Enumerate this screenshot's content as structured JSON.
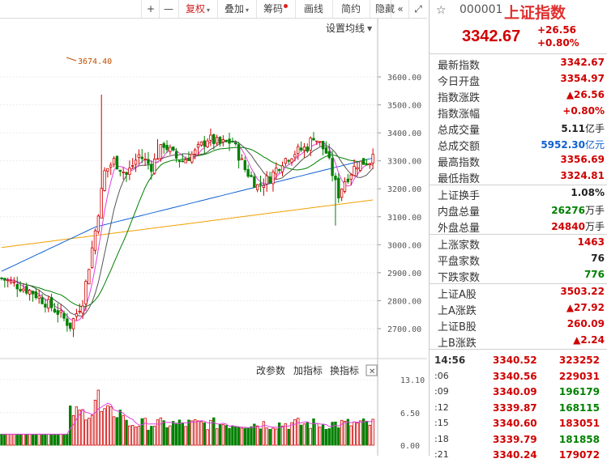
{
  "toolbar": {
    "items": [
      {
        "label": "+",
        "active": false,
        "arrow": false,
        "dot": false
      },
      {
        "label": "—",
        "active": false,
        "arrow": false,
        "dot": false
      },
      {
        "label": "复权",
        "active": true,
        "arrow": true,
        "dot": false
      },
      {
        "label": "叠加",
        "active": false,
        "arrow": true,
        "dot": false
      },
      {
        "label": "筹码",
        "active": false,
        "arrow": false,
        "dot": true
      },
      {
        "label": "画线",
        "active": false,
        "arrow": false,
        "dot": false
      },
      {
        "label": "简约",
        "active": false,
        "arrow": false,
        "dot": false
      },
      {
        "label": "隐藏",
        "active": false,
        "arrow": false,
        "dot": false
      },
      {
        "label": "«",
        "active": false,
        "arrow": false,
        "dot": false
      },
      {
        "label": "⤢",
        "active": false,
        "arrow": false,
        "dot": false
      }
    ]
  },
  "main_chart": {
    "ma_settings_label": "设置均线",
    "peak_label": "3674.40",
    "y_ticks": [
      "3600.00",
      "3500.00",
      "3400.00",
      "3300.00",
      "3200.00",
      "3100.00",
      "3000.00",
      "2900.00",
      "2800.00",
      "2700.00"
    ],
    "y_values": [
      3600,
      3500,
      3400,
      3300,
      3200,
      3100,
      3000,
      2900,
      2800,
      2700
    ]
  },
  "volume_chart": {
    "buttons": {
      "params": "改参数",
      "add": "加指标",
      "switch": "换指标",
      "close": "✕"
    },
    "y_ticks": [
      "13.10",
      "6.50",
      "0.00"
    ]
  },
  "colors": {
    "up": "#d00000",
    "down": "#008000",
    "ma5": "#e040e0",
    "ma10": "#555555",
    "ma20": "#008000",
    "ma60": "#1060d0",
    "ma120": "#f0a000"
  },
  "panel": {
    "star": "☆",
    "code": "000001",
    "name": "上证指数",
    "price": "3342.67",
    "change": "+26.56",
    "change_pct": "+0.80%",
    "stats1": [
      {
        "label": "最新指数",
        "value": "3342.67",
        "unit": "",
        "color": "red"
      },
      {
        "label": "今日开盘",
        "value": "3354.97",
        "unit": "",
        "color": "red"
      },
      {
        "label": "指数涨跌",
        "value": "▲26.56",
        "unit": "",
        "color": "red"
      },
      {
        "label": "指数涨幅",
        "value": "+0.80%",
        "unit": "",
        "color": "red"
      },
      {
        "label": "总成交量",
        "value": "5.11",
        "unit": "亿手",
        "color": "blk"
      },
      {
        "label": "总成交额",
        "value": "5952.30",
        "unit": "亿元",
        "color": "blu"
      },
      {
        "label": "最高指数",
        "value": "3356.69",
        "unit": "",
        "color": "red"
      },
      {
        "label": "最低指数",
        "value": "3324.81",
        "unit": "",
        "color": "red"
      }
    ],
    "stats2": [
      {
        "label": "上证换手",
        "value": "1.08%",
        "unit": "",
        "color": "blk"
      },
      {
        "label": "内盘总量",
        "value": "26276",
        "unit": "万手",
        "color": "grn"
      },
      {
        "label": "外盘总量",
        "value": "24840",
        "unit": "万手",
        "color": "red"
      }
    ],
    "stats3": [
      {
        "label": "上涨家数",
        "value": "1463",
        "unit": "",
        "color": "red"
      },
      {
        "label": "平盘家数",
        "value": "76",
        "unit": "",
        "color": "blk"
      },
      {
        "label": "下跌家数",
        "value": "776",
        "unit": "",
        "color": "grn"
      }
    ],
    "stats4": [
      {
        "label": "上证A股",
        "value": "3503.22",
        "unit": "",
        "color": "red"
      },
      {
        "label": "上A涨跌",
        "value": "▲27.92",
        "unit": "",
        "color": "red"
      },
      {
        "label": "上证B股",
        "value": "260.09",
        "unit": "",
        "color": "red"
      },
      {
        "label": "上B涨跌",
        "value": "▲2.24",
        "unit": "",
        "color": "red"
      }
    ],
    "ticks": [
      {
        "time": "14:56",
        "price": "3340.52",
        "vol": "323252",
        "vcolor": "red"
      },
      {
        "time": ":06",
        "price": "3340.56",
        "vol": "229031",
        "vcolor": "red"
      },
      {
        "time": ":09",
        "price": "3340.09",
        "vol": "196179",
        "vcolor": "grn"
      },
      {
        "time": ":12",
        "price": "3339.87",
        "vol": "168115",
        "vcolor": "grn"
      },
      {
        "time": ":15",
        "price": "3340.60",
        "vol": "183051",
        "vcolor": "red"
      },
      {
        "time": ":18",
        "price": "3339.79",
        "vol": "181858",
        "vcolor": "grn"
      },
      {
        "time": ":21",
        "price": "3340.24",
        "vol": "179072",
        "vcolor": "red"
      }
    ]
  }
}
